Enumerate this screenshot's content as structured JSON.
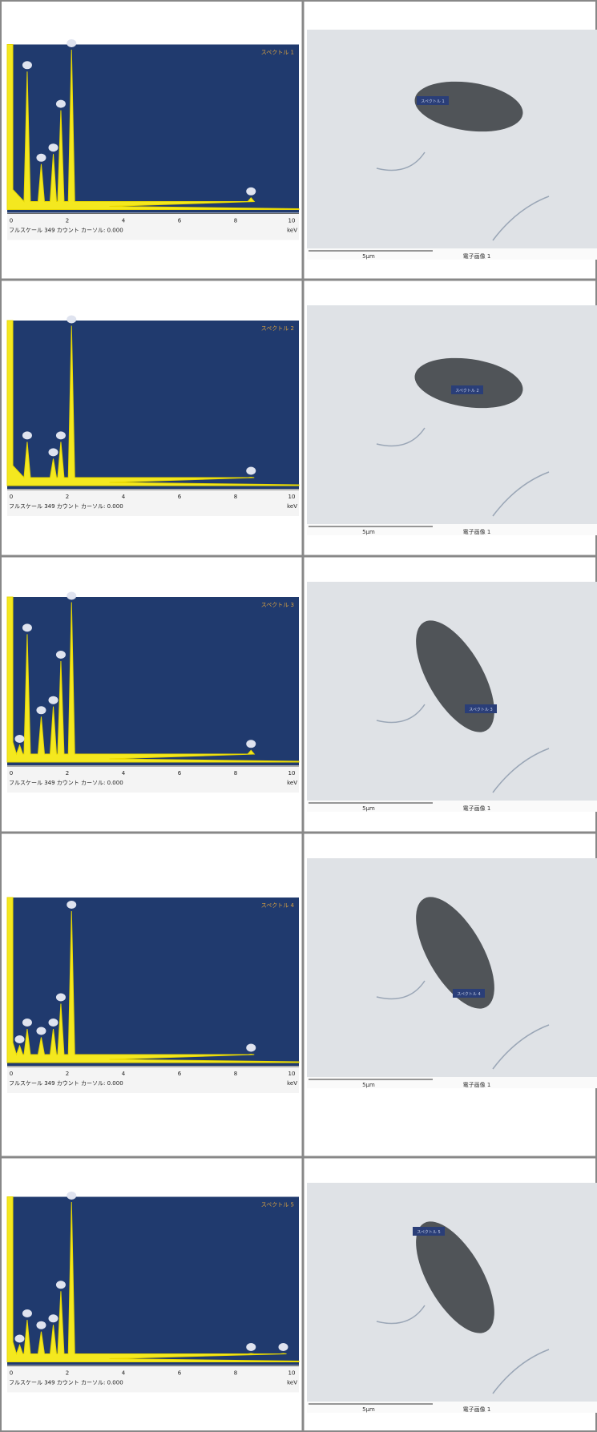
{
  "rows": [
    {
      "spectrum": {
        "label": "スペクトル 1",
        "x_ticks": [
          "0",
          "2",
          "4",
          "6",
          "8",
          "10"
        ],
        "unit": "keV",
        "footer": "フルスケール 349 カウント カーソル: 0.000"
      },
      "image": {
        "label": "スペクトル 1",
        "scale": "5µm",
        "caption": "電子画像 1"
      }
    },
    {
      "spectrum": {
        "label": "スペクトル 2",
        "x_ticks": [
          "0",
          "2",
          "4",
          "6",
          "8",
          "10"
        ],
        "unit": "keV",
        "footer": "フルスケール 349 カウント カーソル: 0.000"
      },
      "image": {
        "label": "スペクトル 2",
        "scale": "5µm",
        "caption": "電子画像 1"
      }
    },
    {
      "spectrum": {
        "label": "スペクトル 3",
        "x_ticks": [
          "0",
          "2",
          "4",
          "6",
          "8",
          "10"
        ],
        "unit": "keV",
        "footer": "フルスケール 349 カウント カーソル: 0.000"
      },
      "image": {
        "label": "スペクトル 3",
        "scale": "5µm",
        "caption": "電子画像 1"
      }
    },
    {
      "spectrum": {
        "label": "スペクトル 4",
        "x_ticks": [
          "0",
          "2",
          "4",
          "6",
          "8",
          "10"
        ],
        "unit": "keV",
        "footer": "フルスケール 349 カウント カーソル: 0.000"
      },
      "image": {
        "label": "スペクトル 4",
        "scale": "5µm",
        "caption": "電子画像 1"
      }
    },
    {
      "spectrum": {
        "label": "スペクトル 5",
        "x_ticks": [
          "0",
          "2",
          "4",
          "6",
          "8",
          "10"
        ],
        "unit": "keV",
        "footer": "フルスケール 349 カウント カーソル: 0.000"
      },
      "image": {
        "label": "スペクトル 5",
        "scale": "5µm",
        "caption": "電子画像 1"
      }
    }
  ]
}
